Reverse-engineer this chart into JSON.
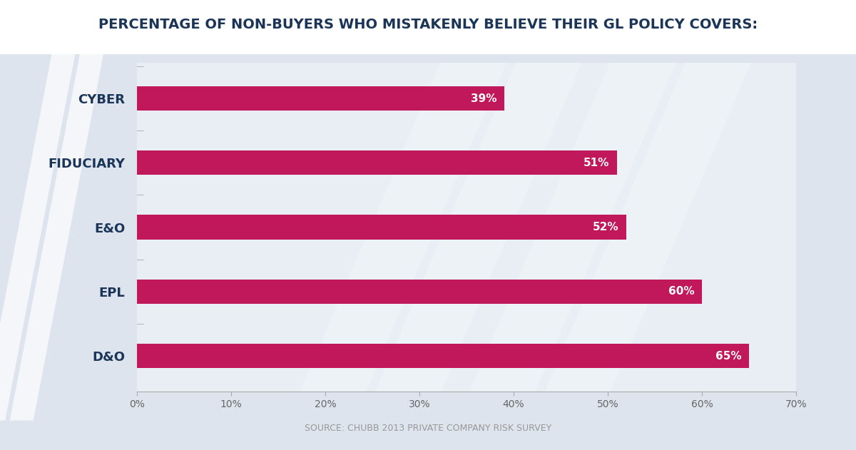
{
  "title": "PERCENTAGE OF NON-BUYERS WHO MISTAKENLY BELIEVE THEIR GL POLICY COVERS:",
  "source": "SOURCE: CHUBB 2013 PRIVATE COMPANY RISK SURVEY",
  "categories": [
    "CYBER",
    "FIDUCIARY",
    "E&O",
    "EPL",
    "D&O"
  ],
  "values": [
    39,
    51,
    52,
    60,
    65
  ],
  "bar_color": "#c0185a",
  "label_color": "#1a3558",
  "background_color": "#dde4ed",
  "plot_bg_color": "#e8eef4",
  "title_color": "#1a3558",
  "source_color": "#999999",
  "stripe_color": "#c5cdd8",
  "white_color": "#ffffff",
  "xlim": [
    0,
    70
  ],
  "xticks": [
    0,
    10,
    20,
    30,
    40,
    50,
    60,
    70
  ],
  "xticklabels": [
    "0%",
    "10%",
    "20%",
    "30%",
    "40%",
    "50%",
    "60%",
    "70%"
  ],
  "title_fontsize": 14,
  "label_fontsize": 13,
  "value_fontsize": 11,
  "source_fontsize": 9,
  "bar_height": 0.38,
  "figsize": [
    12.0,
    6.31
  ]
}
